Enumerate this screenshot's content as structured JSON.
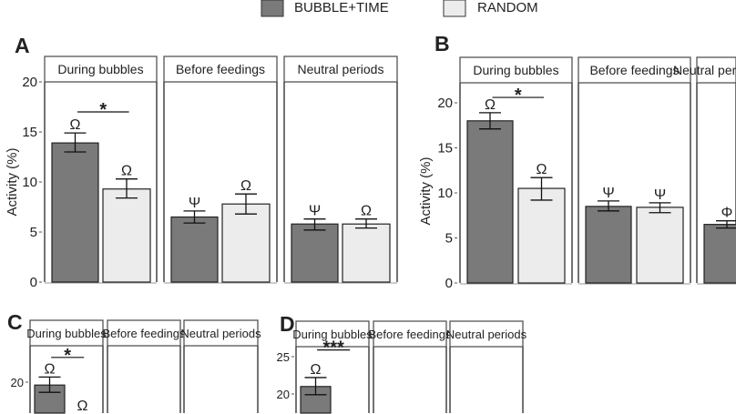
{
  "legend": {
    "items": [
      {
        "label": "BUBBLE+TIME",
        "color": "#7a7a7a"
      },
      {
        "label": "RANDOM",
        "color": "#ececec"
      }
    ]
  },
  "chart_data": [
    {
      "type": "bar",
      "panel": "A",
      "ylabel": "Activity (%)",
      "ylim": [
        0,
        20
      ],
      "yticks": [
        0,
        5,
        10,
        15,
        20
      ],
      "facets": [
        {
          "label": "During bubbles",
          "bars": [
            {
              "value": 13.9,
              "err": [
                13.0,
                14.9
              ],
              "mark": "Ω"
            },
            {
              "value": 9.3,
              "err": [
                8.4,
                10.3
              ],
              "mark": "Ω"
            }
          ],
          "significance": {
            "label": "*",
            "y": 17
          }
        },
        {
          "label": "Before feedings",
          "bars": [
            {
              "value": 6.5,
              "err": [
                5.9,
                7.1
              ],
              "mark": "Ψ"
            },
            {
              "value": 7.8,
              "err": [
                6.8,
                8.8
              ],
              "mark": "Ω"
            }
          ]
        },
        {
          "label": "Neutral periods",
          "bars": [
            {
              "value": 5.8,
              "err": [
                5.2,
                6.3
              ],
              "mark": "Ψ"
            },
            {
              "value": 5.8,
              "err": [
                5.4,
                6.3
              ],
              "mark": "Ω"
            }
          ]
        }
      ]
    },
    {
      "type": "bar",
      "panel": "B",
      "ylabel": "Activity (%)",
      "ylim": [
        0,
        22
      ],
      "yticks": [
        0,
        5,
        10,
        15,
        20
      ],
      "facets": [
        {
          "label": "During bubbles",
          "bars": [
            {
              "value": 18.0,
              "err": [
                17.1,
                18.9
              ],
              "mark": "Ω"
            },
            {
              "value": 10.5,
              "err": [
                9.2,
                11.7
              ],
              "mark": "Ω"
            }
          ],
          "significance": {
            "label": "*",
            "y": 20.6
          }
        },
        {
          "label": "Before feedings",
          "bars": [
            {
              "value": 8.5,
              "err": [
                8.0,
                9.1
              ],
              "mark": "Ψ"
            },
            {
              "value": 8.4,
              "err": [
                7.8,
                8.9
              ],
              "mark": "Ψ"
            }
          ]
        },
        {
          "label": "Neutral periods",
          "bars": [
            {
              "value": 6.5,
              "err": [
                6.1,
                6.9
              ],
              "mark": "Φ"
            },
            null
          ]
        }
      ]
    },
    {
      "type": "bar",
      "panel": "C",
      "yticks": [
        20
      ],
      "facets": [
        {
          "label": "During bubbles",
          "bars": [
            {
              "value": 19.6,
              "err": [
                18.6,
                20.7
              ],
              "mark": "Ω"
            },
            {
              "value": null,
              "err": null,
              "mark": "Ω",
              "mark_at": 15.6
            }
          ],
          "significance": {
            "label": "*",
            "y": 23.4
          }
        },
        {
          "label": "Before feedings",
          "bars": []
        },
        {
          "label": "Neutral periods",
          "bars": []
        }
      ]
    },
    {
      "type": "bar",
      "panel": "D",
      "yticks": [
        20,
        25
      ],
      "facets": [
        {
          "label": "During bubbles",
          "bars": [
            {
              "value": 21.0,
              "err": [
                19.9,
                22.2
              ],
              "mark": "Ω"
            },
            null
          ],
          "significance": {
            "label": "***",
            "y": 25.9
          }
        },
        {
          "label": "Before feedings",
          "bars": []
        },
        {
          "label": "Neutral periods",
          "bars": []
        }
      ]
    }
  ]
}
